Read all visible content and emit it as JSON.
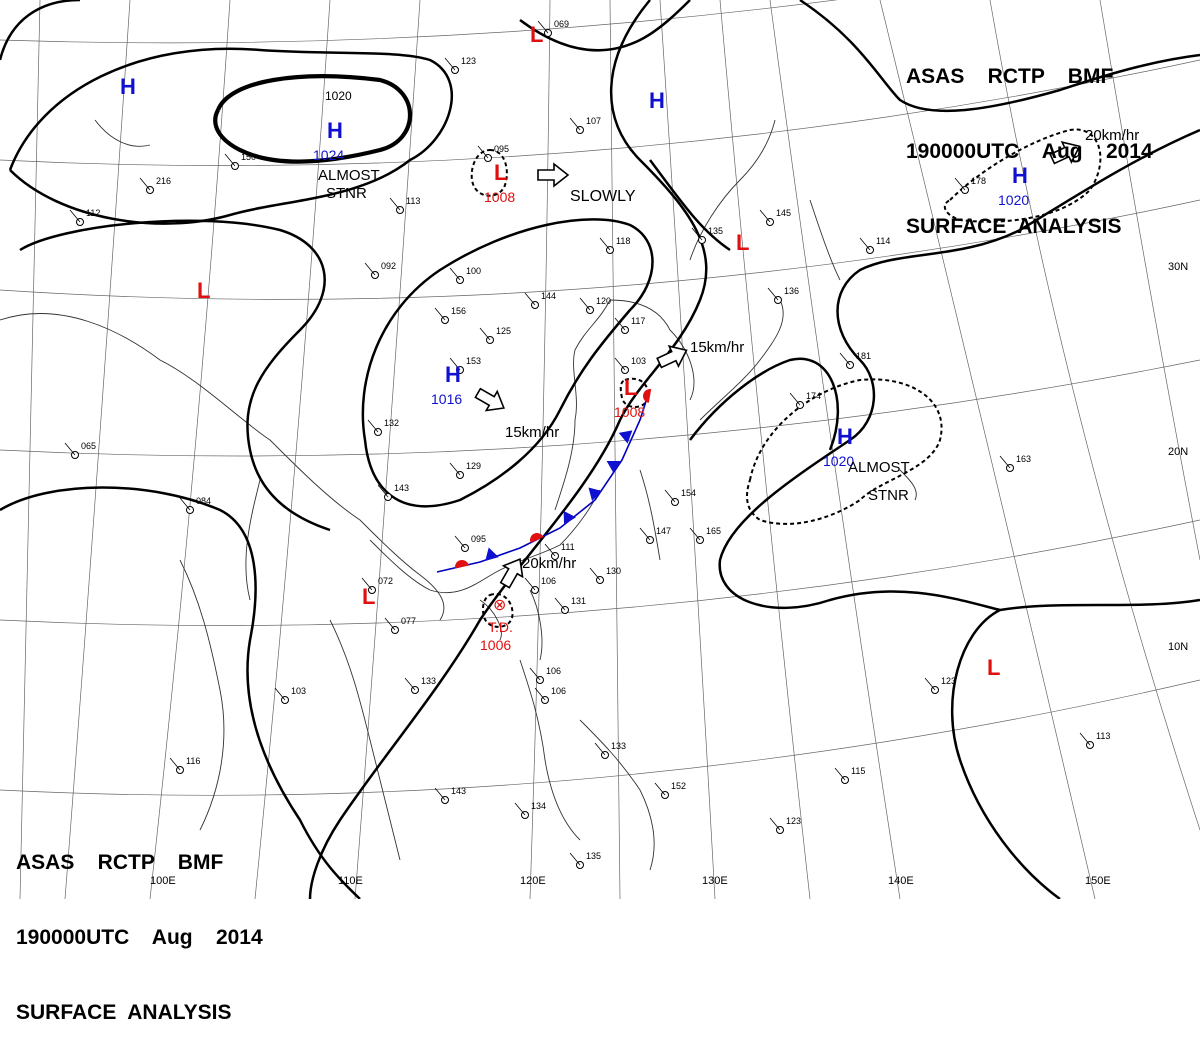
{
  "header": {
    "line1": "ASAS    RCTP    BMF",
    "line2": "190000UTC    Aug    2014",
    "line3": "SURFACE  ANALYSIS"
  },
  "colors": {
    "high": "#1010d0",
    "low": "#e01010",
    "isobar": "#000000",
    "grid": "#555555"
  },
  "lat_labels": [
    "30N",
    "20N",
    "10N"
  ],
  "lon_labels": [
    "100E",
    "110E",
    "120E",
    "130E",
    "140E",
    "150E"
  ],
  "isobar_labels": [
    "1020"
  ],
  "pressure_centers": [
    {
      "type": "H",
      "value": "",
      "id": "h-nw-corner"
    },
    {
      "type": "H",
      "value": "1024",
      "id": "h-mongolia"
    },
    {
      "type": "H",
      "value": "",
      "id": "h-manchuria"
    },
    {
      "type": "H",
      "value": "1020",
      "id": "h-nw-pacific"
    },
    {
      "type": "H",
      "value": "1016",
      "id": "h-china"
    },
    {
      "type": "H",
      "value": "1020",
      "id": "h-pacific"
    },
    {
      "type": "L",
      "value": "",
      "id": "l-north"
    },
    {
      "type": "L",
      "value": "1008",
      "id": "l-north-china"
    },
    {
      "type": "L",
      "value": "",
      "id": "l-tibet"
    },
    {
      "type": "L",
      "value": "",
      "id": "l-japan-sea"
    },
    {
      "type": "L",
      "value": "1008",
      "id": "l-east-china-sea"
    },
    {
      "type": "L",
      "value": "",
      "id": "l-indochina"
    },
    {
      "type": "L",
      "value": "",
      "id": "l-west-pacific"
    },
    {
      "type": "TD",
      "value": "1006",
      "id": "td-south-china-sea",
      "label": "T.D."
    }
  ],
  "annotations": {
    "almost_stnr": "ALMOST\nSTNR",
    "slowly": "SLOWLY",
    "speed_15": "15km/hr",
    "speed_20": "20km/hr"
  },
  "station_samples": [
    "069",
    "123",
    "095",
    "107",
    "150",
    "216",
    "112",
    "113",
    "092",
    "100",
    "118",
    "144",
    "120",
    "156",
    "125",
    "153",
    "117",
    "103",
    "132",
    "129",
    "143",
    "135",
    "145",
    "114",
    "136",
    "181",
    "174",
    "163",
    "095",
    "111",
    "106",
    "131",
    "147",
    "154",
    "165",
    "130",
    "072",
    "077",
    "103",
    "133",
    "106",
    "133",
    "143",
    "134",
    "135",
    "152",
    "123",
    "116",
    "106",
    "065",
    "084",
    "115",
    "113",
    "123",
    "178"
  ]
}
